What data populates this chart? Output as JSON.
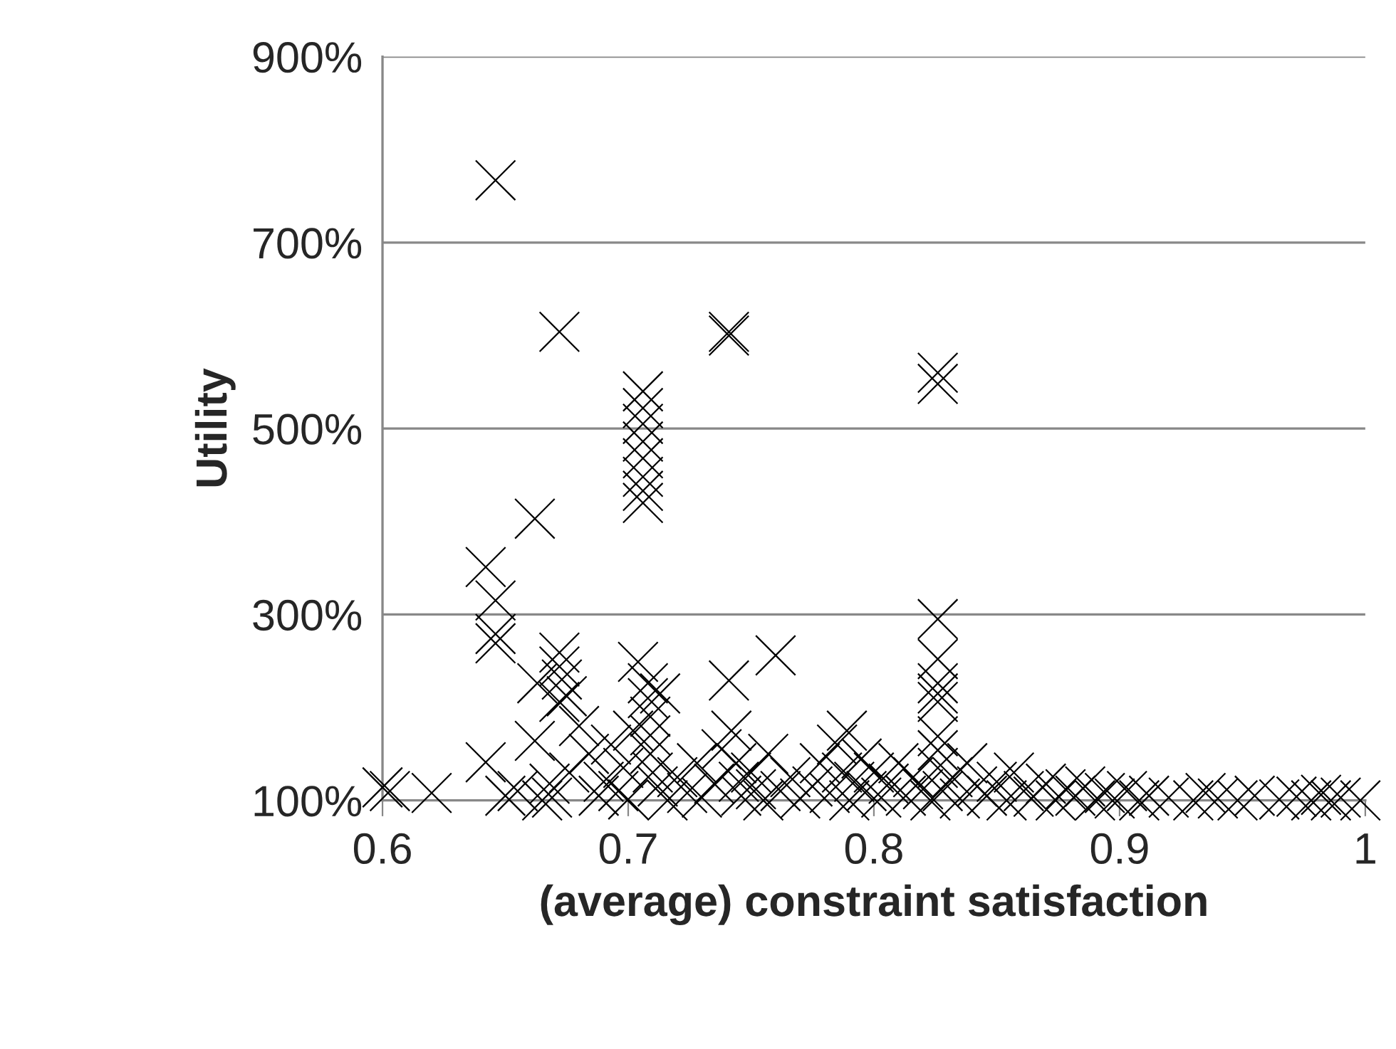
{
  "chart_data": {
    "type": "scatter",
    "xlabel": "(average) constraint satisfaction",
    "ylabel": "Utility",
    "xlim": [
      0.6,
      1
    ],
    "xticks": [
      0.6,
      0.7,
      0.8,
      0.9,
      1
    ],
    "ylim": [
      100,
      900
    ],
    "yticks": [
      {
        "value": 100,
        "label": "100%"
      },
      {
        "value": 300,
        "label": "300%"
      },
      {
        "value": 500,
        "label": "500%"
      },
      {
        "value": 700,
        "label": "700%"
      },
      {
        "value": 900,
        "label": "900%"
      }
    ],
    "grid": "y",
    "marker": "cross",
    "series": [
      {
        "color": "#000000",
        "x": [
          0.6,
          0.603,
          0.62,
          0.642,
          0.646,
          0.642,
          0.646,
          0.646,
          0.646,
          0.65,
          0.655,
          0.662,
          0.662,
          0.663,
          0.665,
          0.668,
          0.669,
          0.672,
          0.672,
          0.672,
          0.672,
          0.673,
          0.675,
          0.676,
          0.68,
          0.684,
          0.688,
          0.69,
          0.693,
          0.696,
          0.698,
          0.7,
          0.702,
          0.704,
          0.706,
          0.706,
          0.706,
          0.706,
          0.706,
          0.706,
          0.706,
          0.706,
          0.708,
          0.708,
          0.709,
          0.709,
          0.709,
          0.71,
          0.712,
          0.713,
          0.716,
          0.72,
          0.724,
          0.728,
          0.73,
          0.735,
          0.738,
          0.741,
          0.741,
          0.741,
          0.742,
          0.744,
          0.745,
          0.746,
          0.75,
          0.752,
          0.755,
          0.757,
          0.76,
          0.762,
          0.766,
          0.77,
          0.775,
          0.778,
          0.782,
          0.785,
          0.787,
          0.789,
          0.79,
          0.792,
          0.795,
          0.797,
          0.8,
          0.803,
          0.806,
          0.81,
          0.813,
          0.816,
          0.82,
          0.823,
          0.826,
          0.826,
          0.826,
          0.826,
          0.826,
          0.826,
          0.826,
          0.826,
          0.826,
          0.826,
          0.828,
          0.832,
          0.835,
          0.838,
          0.842,
          0.846,
          0.85,
          0.854,
          0.857,
          0.861,
          0.865,
          0.87,
          0.874,
          0.878,
          0.882,
          0.886,
          0.89,
          0.894,
          0.898,
          0.903,
          0.908,
          0.912,
          0.92,
          0.93,
          0.935,
          0.94,
          0.948,
          0.955,
          0.965,
          0.972,
          0.978,
          0.982,
          0.986,
          0.99,
          0.998
        ],
        "values": [
          114,
          110,
          108,
          141,
          767,
          351,
          315,
          279,
          269,
          105,
          110,
          164,
          403,
          226,
          100,
          118,
          103,
          604,
          259,
          244,
          206,
          230,
          212,
          130,
          180,
          150,
          105,
          120,
          160,
          110,
          135,
          101,
          175,
          249,
          540,
          522,
          505,
          486,
          468,
          448,
          433,
          420,
          226,
          210,
          190,
          170,
          150,
          130,
          115,
          215,
          100,
          125,
          108,
          140,
          103,
          118,
          155,
          604,
          600,
          229,
          175,
          140,
          120,
          105,
          130,
          112,
          100,
          150,
          256,
          110,
          125,
          102,
          115,
          140,
          108,
          160,
          130,
          175,
          100,
          120,
          145,
          110,
          130,
          103,
          118,
          140,
          105,
          125,
          112,
          100,
          560,
          548,
          295,
          252,
          226,
          215,
          206,
          169,
          154,
          135,
          110,
          125,
          102,
          140,
          115,
          105,
          120,
          100,
          130,
          110,
          104,
          118,
          100,
          112,
          105,
          115,
          100,
          108,
          102,
          110,
          100,
          105,
          103,
          100,
          108,
          102,
          100,
          105,
          101,
          104,
          100,
          106,
          100,
          103,
          100
        ]
      }
    ]
  }
}
